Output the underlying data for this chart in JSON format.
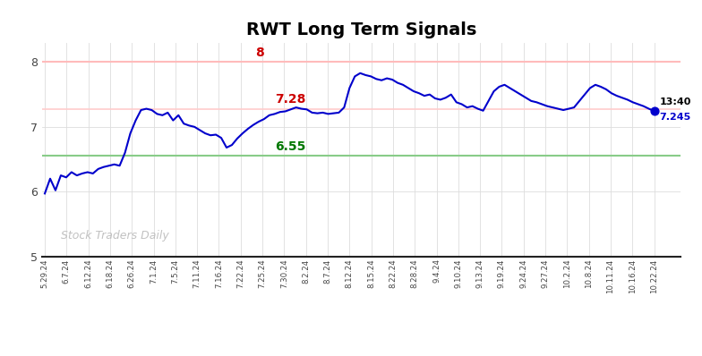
{
  "title": "RWT Long Term Signals",
  "title_fontsize": 14,
  "title_fontweight": "bold",
  "watermark": "Stock Traders Daily",
  "watermark_color": "#bbbbbb",
  "line_color": "#0000cc",
  "line_width": 1.5,
  "background_color": "#ffffff",
  "ylim": [
    5.0,
    8.3
  ],
  "hline_upper": 8.0,
  "hline_upper_color": "#ffbbbb",
  "hline_middle": 7.28,
  "hline_middle_color": "#ffcccc",
  "hline_lower": 6.55,
  "hline_lower_color": "#88cc88",
  "label_upper_val": "8",
  "label_upper_color": "#cc0000",
  "label_middle_val": "7.28",
  "label_middle_color": "#cc0000",
  "label_lower_val": "6.55",
  "label_lower_color": "#007700",
  "last_time": "13:40",
  "last_val": "7.245",
  "last_dot_color": "#0000cc",
  "grid_color": "#dddddd",
  "tick_label_color": "#444444",
  "x_labels": [
    "5.29.24",
    "6.7.24",
    "6.12.24",
    "6.18.24",
    "6.26.24",
    "7.1.24",
    "7.5.24",
    "7.11.24",
    "7.16.24",
    "7.22.24",
    "7.25.24",
    "7.30.24",
    "8.2.24",
    "8.7.24",
    "8.12.24",
    "8.15.24",
    "8.22.24",
    "8.28.24",
    "9.4.24",
    "9.10.24",
    "9.13.24",
    "9.19.24",
    "9.24.24",
    "9.27.24",
    "10.2.24",
    "10.8.24",
    "10.11.24",
    "10.16.24",
    "10.22.24"
  ],
  "y_values": [
    5.97,
    6.2,
    6.02,
    6.25,
    6.22,
    6.3,
    6.25,
    6.28,
    6.3,
    6.28,
    6.35,
    6.38,
    6.4,
    6.42,
    6.4,
    6.6,
    6.9,
    7.1,
    7.26,
    7.28,
    7.26,
    7.2,
    7.18,
    7.22,
    7.1,
    7.18,
    7.05,
    7.02,
    7.0,
    6.95,
    6.9,
    6.87,
    6.88,
    6.83,
    6.68,
    6.72,
    6.82,
    6.9,
    6.97,
    7.03,
    7.08,
    7.12,
    7.18,
    7.2,
    7.23,
    7.24,
    7.27,
    7.3,
    7.28,
    7.27,
    7.22,
    7.21,
    7.22,
    7.2,
    7.21,
    7.22,
    7.3,
    7.6,
    7.78,
    7.83,
    7.8,
    7.78,
    7.74,
    7.72,
    7.75,
    7.73,
    7.68,
    7.65,
    7.6,
    7.55,
    7.52,
    7.48,
    7.5,
    7.44,
    7.42,
    7.45,
    7.5,
    7.38,
    7.35,
    7.3,
    7.32,
    7.28,
    7.25,
    7.4,
    7.55,
    7.62,
    7.65,
    7.6,
    7.55,
    7.5,
    7.45,
    7.4,
    7.38,
    7.35,
    7.32,
    7.3,
    7.28,
    7.26,
    7.28,
    7.3,
    7.4,
    7.5,
    7.6,
    7.65,
    7.62,
    7.58,
    7.52,
    7.48,
    7.45,
    7.42,
    7.38,
    7.35,
    7.32,
    7.28,
    7.245
  ]
}
